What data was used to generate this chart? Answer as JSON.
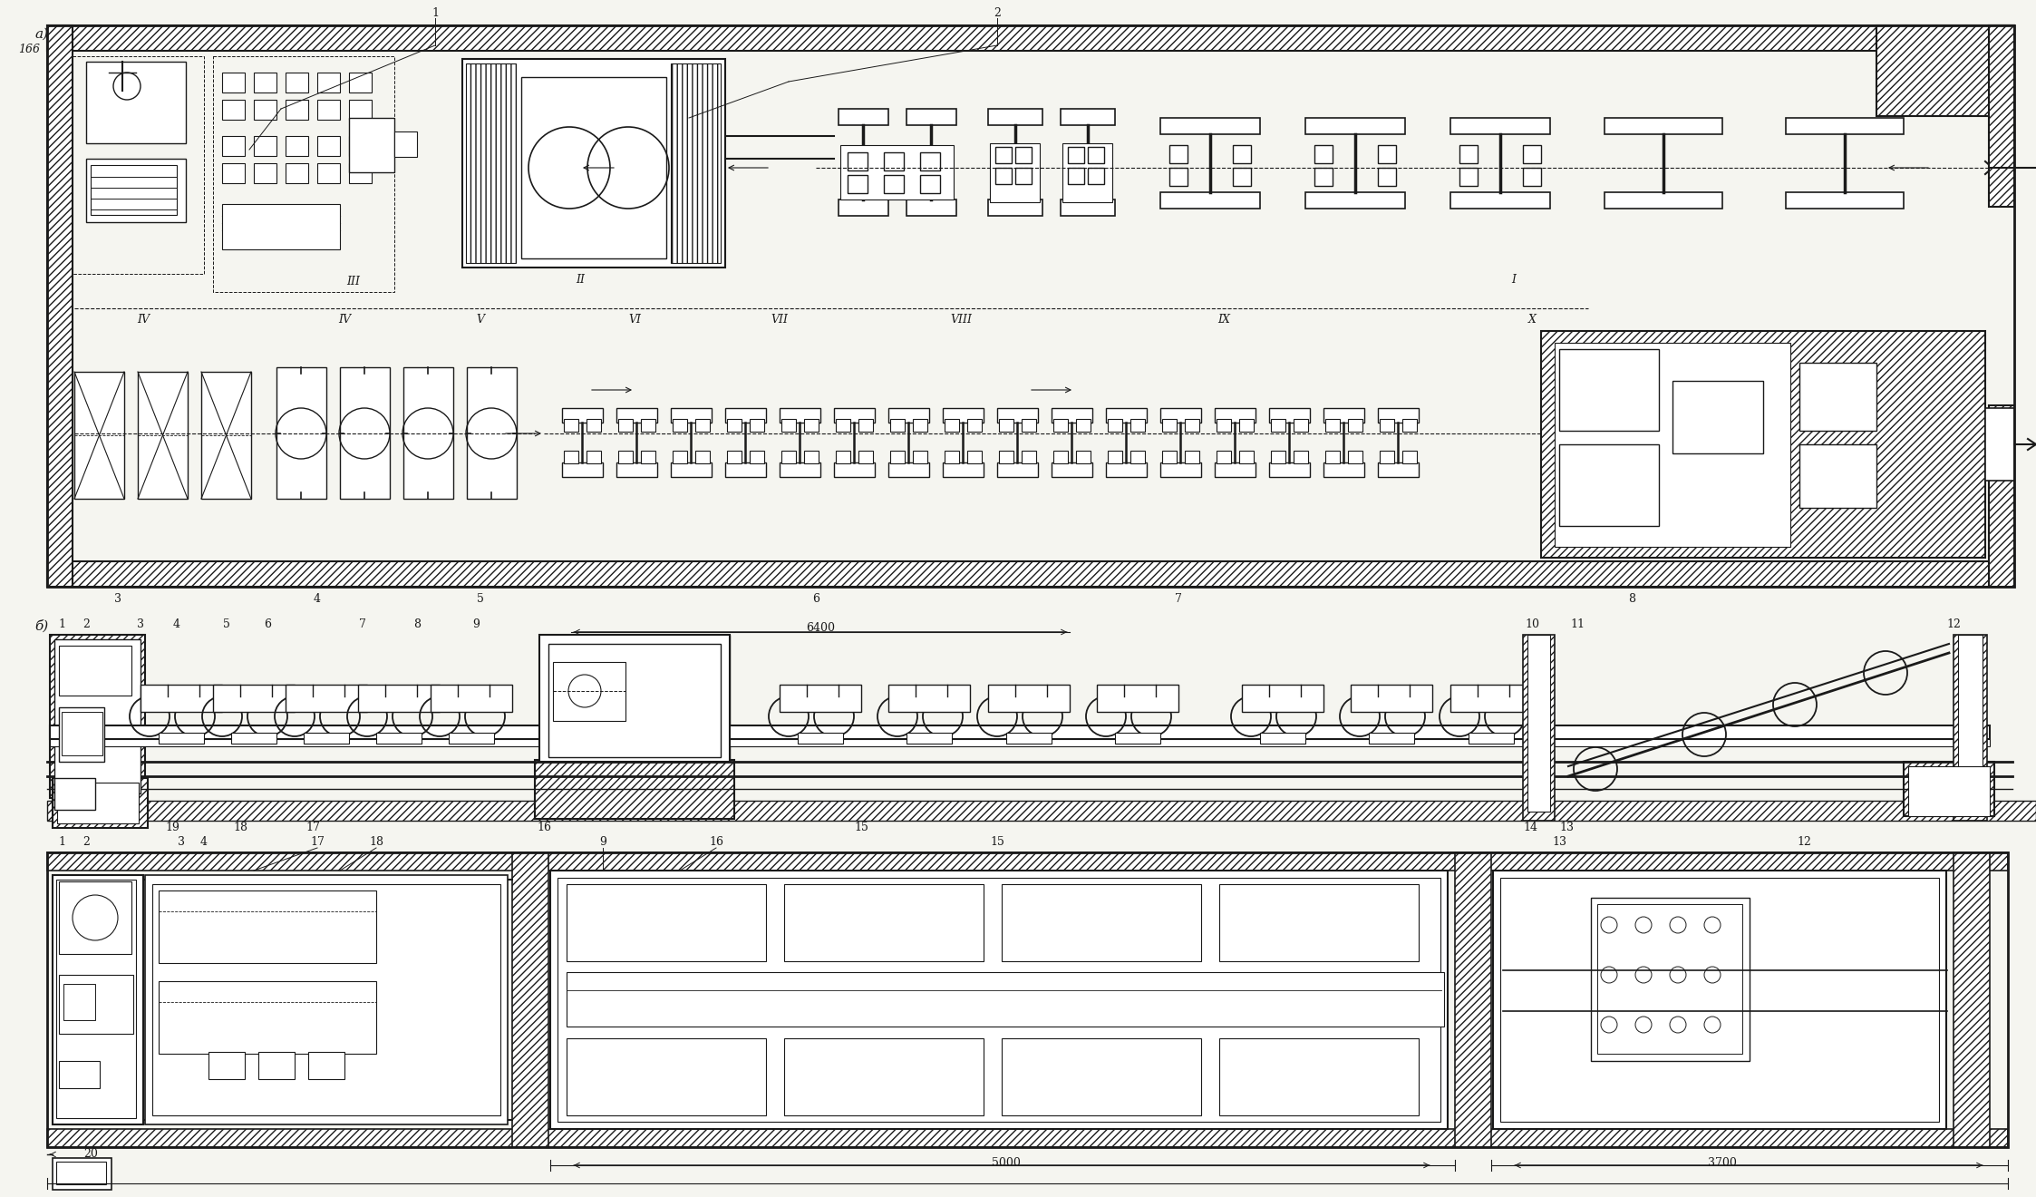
{
  "bg_color": "#f5f5f0",
  "line_color": "#1a1a1a",
  "fig_width": 22.46,
  "fig_height": 13.2,
  "section_a_label": "а)",
  "section_b_label": "б)",
  "page_num": "166",
  "dim_6400": "6400",
  "dim_5000": "5000",
  "dim_3700": "3700"
}
